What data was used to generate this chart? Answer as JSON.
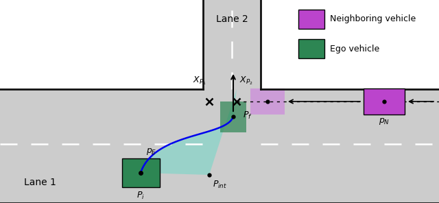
{
  "bg_color": "#ffffff",
  "road_gray": "#cccccc",
  "ego_color": "#2d8653",
  "ego_color_alpha": 0.85,
  "neighbor_color": "#bb44cc",
  "neighbor_ghost_color": "#cc88dd",
  "path_color": "#0000ee",
  "traj_fill_color": "#70d8c8",
  "traj_fill_alpha": 0.55,
  "road_border": "#111111",
  "white_dash": "#ffffff",
  "lane1_label": "Lane 1",
  "lane2_label": "Lane 2",
  "legend_neighbor": "Neighboring vehicle",
  "legend_ego": "Ego vehicle",
  "pi_label": "$P_i$",
  "pf_label": "$P_f$",
  "pint_label": "$P_{int}$",
  "pe_label": "$p_E$",
  "pn_label": "$p_N$",
  "xp1_label": "$X_{P_1}$",
  "xp2_label": "$X_{P_2}$"
}
